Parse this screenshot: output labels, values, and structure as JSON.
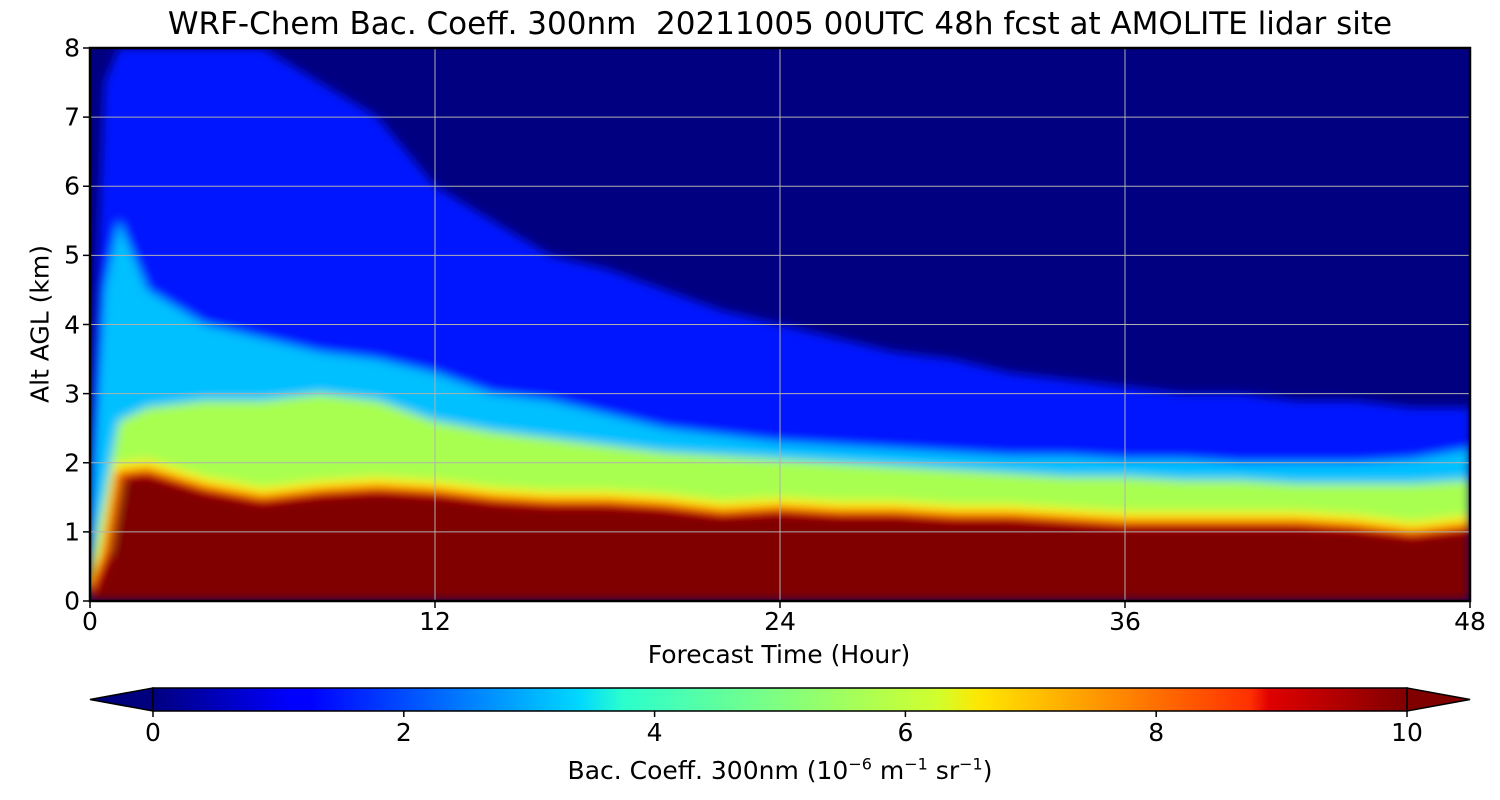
{
  "chart_data": {
    "type": "heatmap",
    "title": "WRF-Chem Bac. Coeff. 300nm  20211005 00UTC 48h fcst at AMOLITE lidar site",
    "xlabel": "Forecast Time (Hour)",
    "ylabel": "Alt AGL (km)",
    "xlim": [
      0,
      48
    ],
    "ylim": [
      0,
      8
    ],
    "xticks": [
      "0",
      "12",
      "24",
      "36",
      "48"
    ],
    "yticks": [
      "0",
      "1",
      "2",
      "3",
      "4",
      "5",
      "6",
      "7",
      "8"
    ],
    "grid": true,
    "colormap": "jet",
    "colorbar": {
      "label_main": "Bac. Coeff. 300nm  (10",
      "label_exp1": "−6",
      "label_mid": " m",
      "label_exp2": "−1",
      "label_mid2": " sr",
      "label_exp3": "−1",
      "label_end": ")",
      "range": [
        0,
        10
      ],
      "ticks": [
        "0",
        "2",
        "4",
        "6",
        "8",
        "10"
      ],
      "extend": "both",
      "orientation": "horizontal"
    },
    "x": [
      0,
      0.5,
      1,
      2,
      4,
      6,
      8,
      10,
      12,
      14,
      16,
      18,
      20,
      22,
      24,
      26,
      28,
      30,
      32,
      34,
      36,
      38,
      40,
      42,
      44,
      46,
      48
    ],
    "y": [
      0,
      0.25,
      0.5,
      0.75,
      1,
      1.25,
      1.5,
      1.75,
      2,
      2.25,
      2.5,
      2.75,
      3,
      3.5,
      4,
      4.5,
      5,
      5.5,
      6,
      7,
      8
    ],
    "series": [
      {
        "name": "max_layer_top_km",
        "values": [
          0.1,
          0.6,
          1.8,
          1.85,
          1.6,
          1.45,
          1.55,
          1.6,
          1.55,
          1.45,
          1.4,
          1.4,
          1.35,
          1.25,
          1.3,
          1.25,
          1.25,
          1.2,
          1.2,
          1.15,
          1.1,
          1.1,
          1.1,
          1.1,
          1.05,
          0.95,
          1.05
        ]
      },
      {
        "name": "green_layer_top_km",
        "values": [
          0.5,
          1.5,
          2.6,
          2.8,
          2.9,
          2.9,
          3.0,
          2.9,
          2.6,
          2.45,
          2.35,
          2.25,
          2.15,
          2.1,
          2.05,
          2.0,
          1.95,
          1.9,
          1.85,
          1.8,
          1.8,
          1.75,
          1.75,
          1.7,
          1.7,
          1.7,
          1.75
        ]
      },
      {
        "name": "cyan_layer_top_km",
        "values": [
          1.0,
          4.5,
          5.5,
          4.5,
          4.0,
          3.8,
          3.6,
          3.5,
          3.3,
          3.0,
          2.9,
          2.7,
          2.5,
          2.4,
          2.3,
          2.25,
          2.2,
          2.15,
          2.1,
          2.1,
          2.05,
          2.05,
          2.0,
          2.0,
          2.0,
          2.05,
          2.2
        ]
      },
      {
        "name": "blue_layer_top_km",
        "values": [
          2.0,
          7.5,
          8.0,
          8.0,
          8.0,
          8.0,
          7.5,
          7.0,
          6.0,
          5.5,
          5.0,
          4.8,
          4.5,
          4.2,
          4.0,
          3.8,
          3.6,
          3.5,
          3.3,
          3.2,
          3.1,
          3.0,
          3.0,
          2.9,
          2.9,
          2.8,
          2.8
        ]
      }
    ],
    "annotations": []
  }
}
